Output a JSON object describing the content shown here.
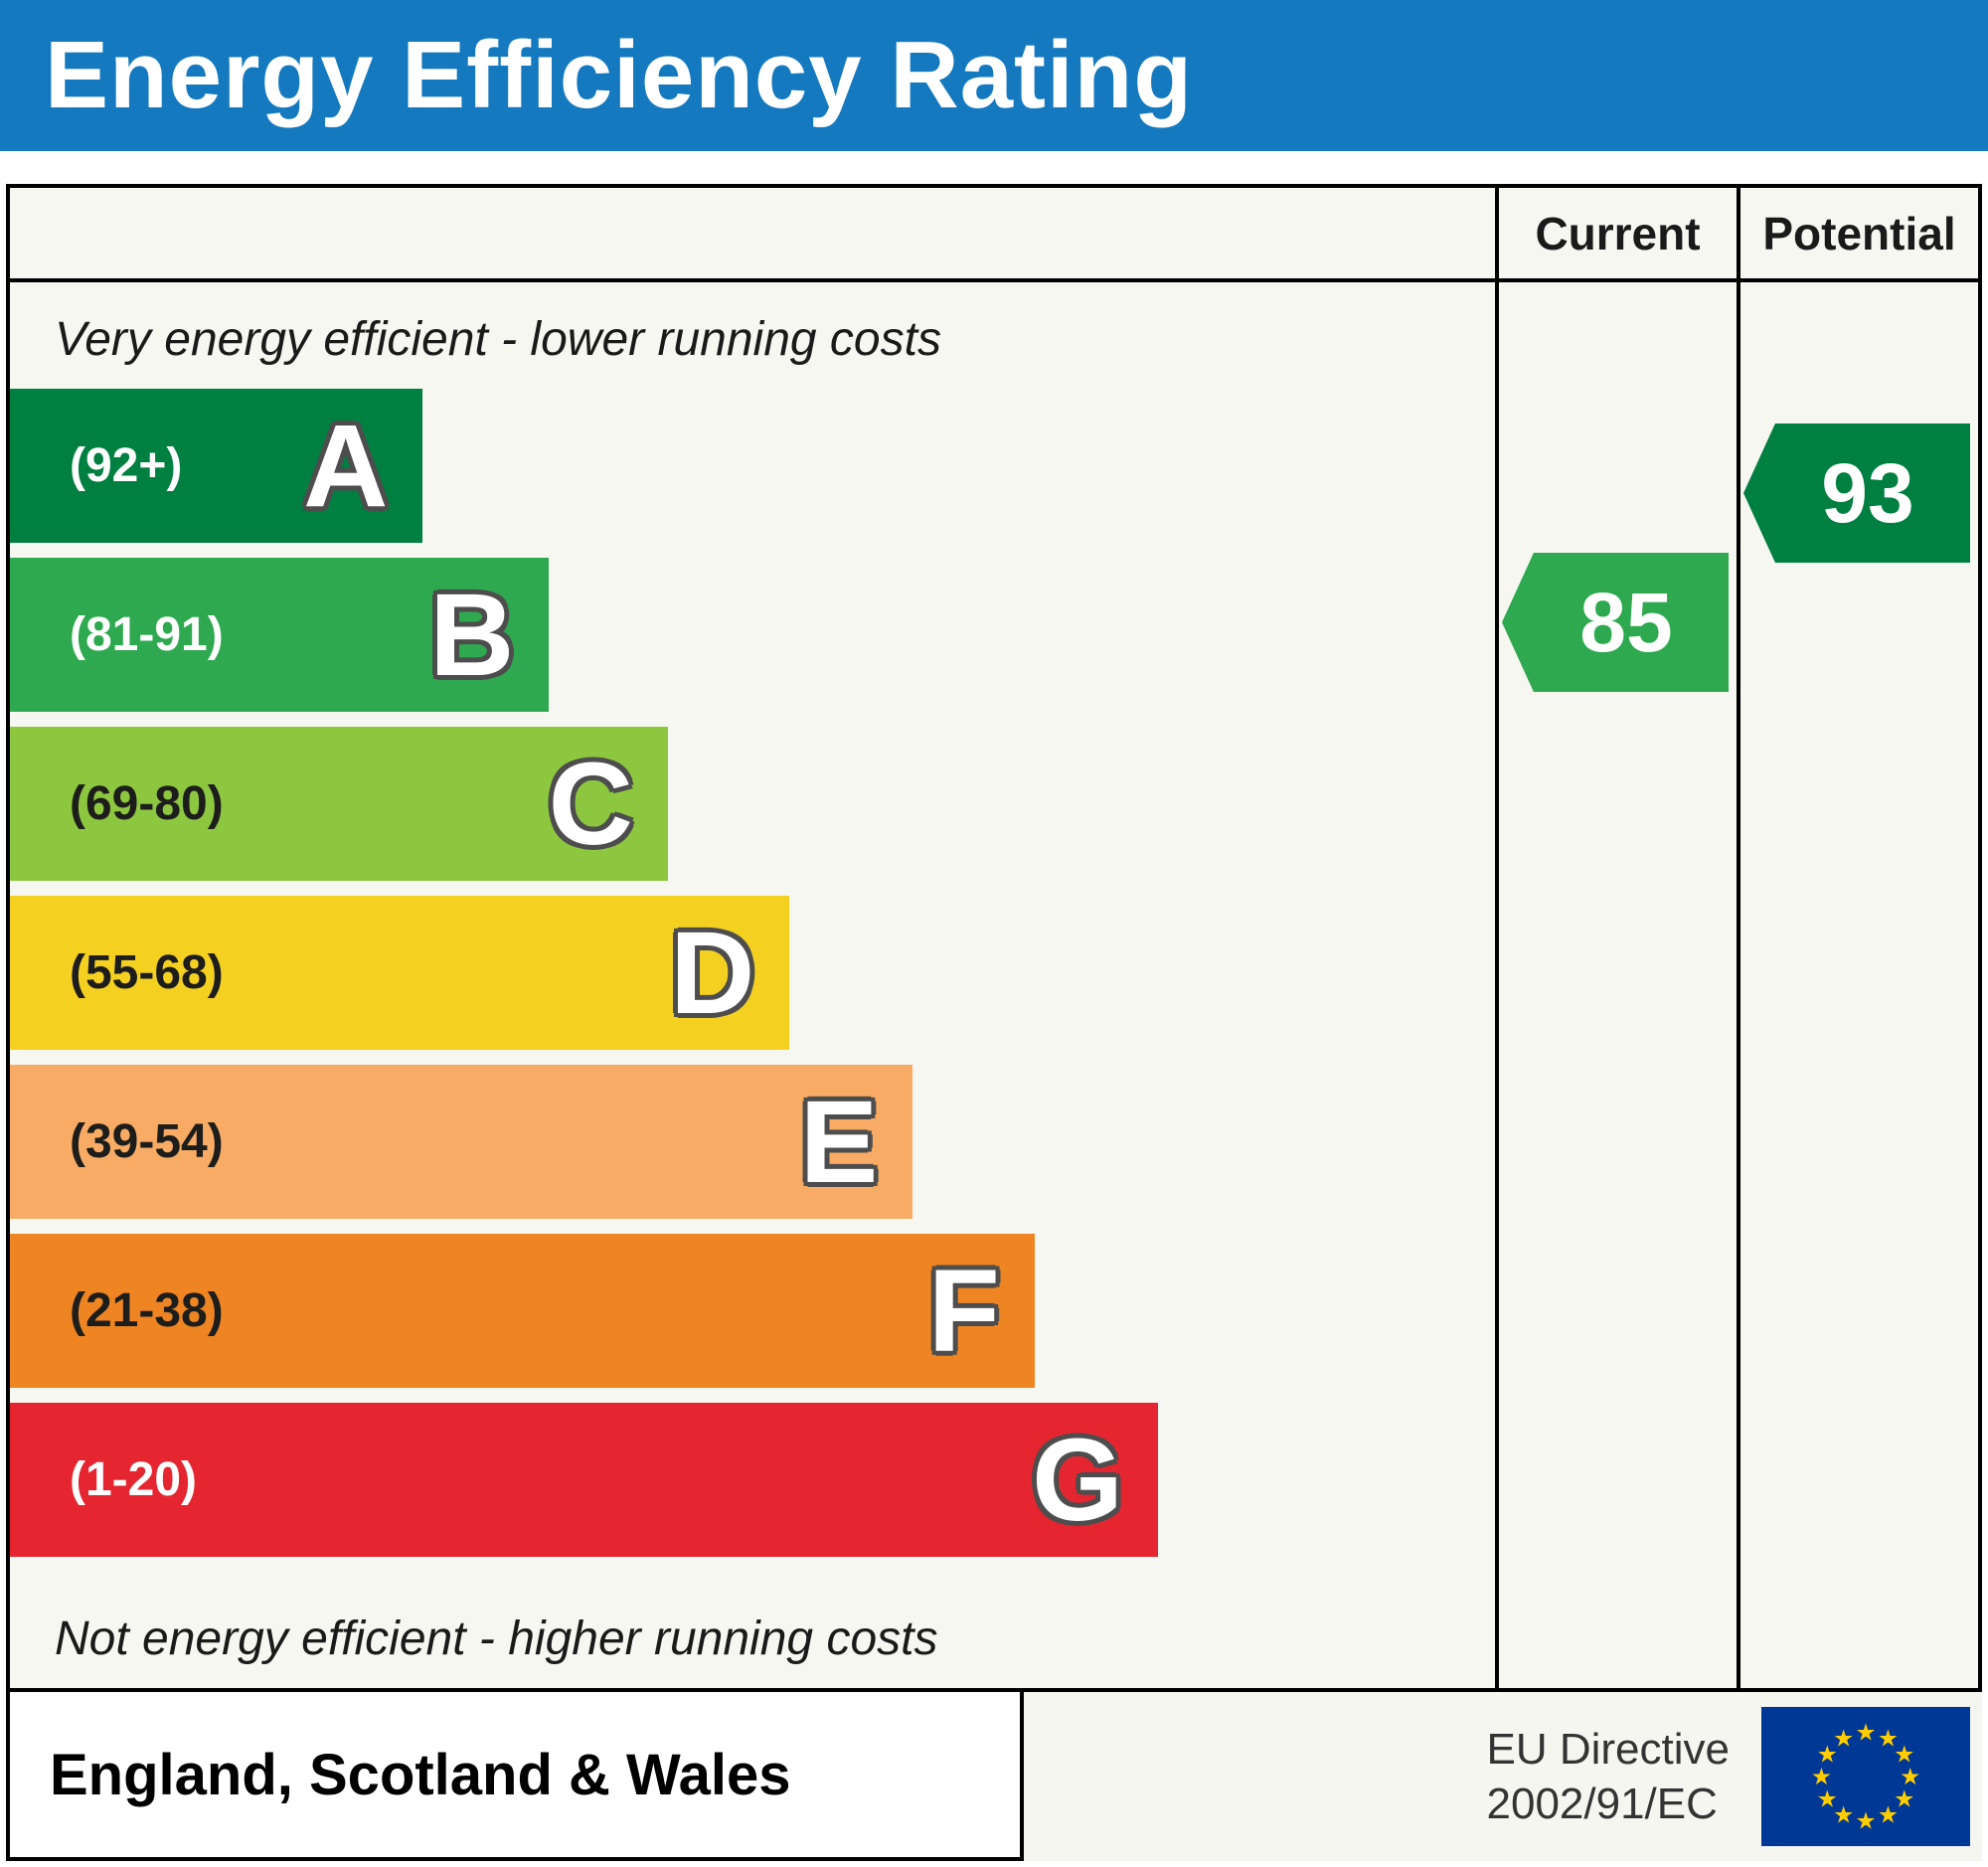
{
  "title": "Energy Efficiency Rating",
  "columns": {
    "current": "Current",
    "potential": "Potential"
  },
  "top_label": "Very energy efficient - lower running costs",
  "bottom_label": "Not energy efficient - higher running costs",
  "bands": [
    {
      "letter": "A",
      "range": "(92+)",
      "color": "#008040",
      "text_color": "#ffffff",
      "width_pct": 27.8
    },
    {
      "letter": "B",
      "range": "(81-91)",
      "color": "#2ea94f",
      "text_color": "#ffffff",
      "width_pct": 36.3
    },
    {
      "letter": "C",
      "range": "(69-80)",
      "color": "#8dc63f",
      "text_color": "#1d1d1b",
      "width_pct": 44.3
    },
    {
      "letter": "D",
      "range": "(55-68)",
      "color": "#f4d021",
      "text_color": "#1d1d1b",
      "width_pct": 52.5
    },
    {
      "letter": "E",
      "range": "(39-54)",
      "color": "#f8ab64",
      "text_color": "#1d1d1b",
      "width_pct": 60.8
    },
    {
      "letter": "F",
      "range": "(21-38)",
      "color": "#ee8422",
      "text_color": "#1d1d1b",
      "width_pct": 69.0
    },
    {
      "letter": "G",
      "range": "(1-20)",
      "color": "#e52630",
      "text_color": "#ffffff",
      "width_pct": 77.3
    }
  ],
  "current": {
    "value": "85",
    "color": "#2ea94f"
  },
  "potential": {
    "value": "93",
    "color": "#008040"
  },
  "footer": {
    "region": "England, Scotland & Wales",
    "directive_line1": "EU Directive",
    "directive_line2": "2002/91/EC"
  },
  "flag": {
    "bg": "#003995",
    "star": "#ffcc00"
  },
  "chart_data": {
    "type": "bar",
    "title": "Energy Efficiency Rating",
    "categories": [
      "A",
      "B",
      "C",
      "D",
      "E",
      "F",
      "G"
    ],
    "band_ranges": [
      "92+",
      "81-91",
      "69-80",
      "55-68",
      "39-54",
      "21-38",
      "1-20"
    ],
    "bar_widths_pct": [
      27.8,
      36.3,
      44.3,
      52.5,
      60.8,
      69.0,
      77.3
    ],
    "bar_colors": [
      "#008040",
      "#2ea94f",
      "#8dc63f",
      "#f4d021",
      "#f8ab64",
      "#ee8422",
      "#e52630"
    ],
    "current_rating": 85,
    "potential_rating": 93,
    "annotations": [
      "Very energy efficient - lower running costs",
      "Not energy efficient - higher running costs"
    ],
    "legend_position": "none",
    "region": "England, Scotland & Wales",
    "directive": "EU Directive 2002/91/EC"
  }
}
